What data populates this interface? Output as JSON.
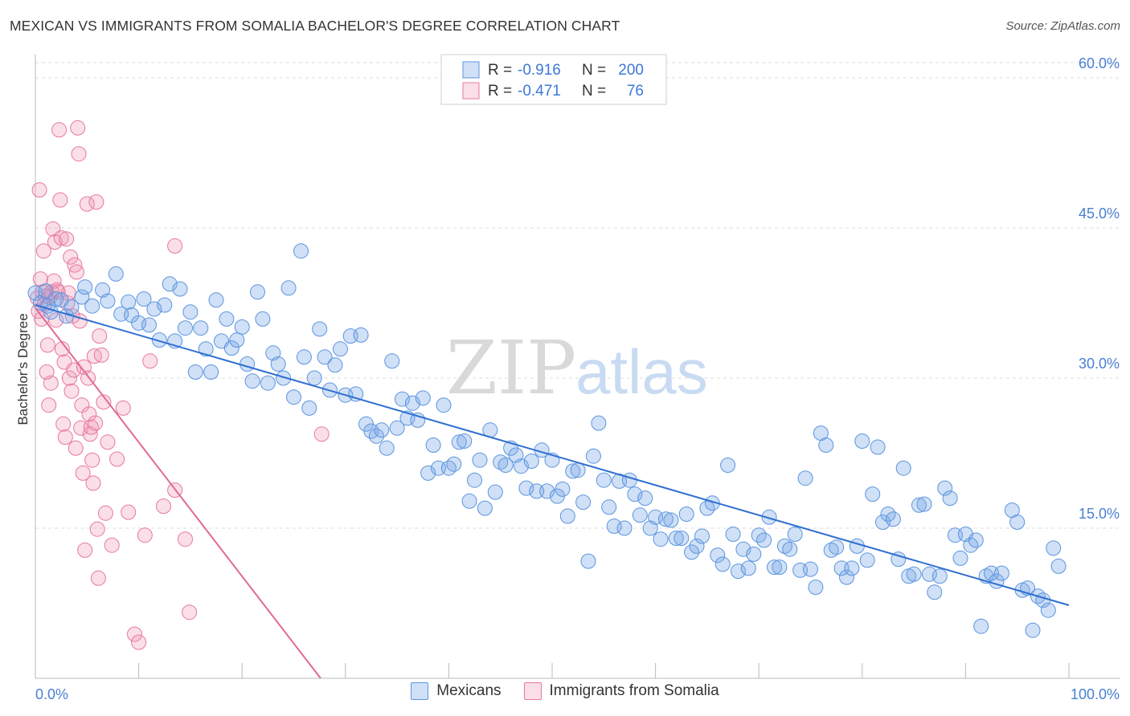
{
  "title": "MEXICAN VS IMMIGRANTS FROM SOMALIA BACHELOR'S DEGREE CORRELATION CHART",
  "source": "Source: ZipAtlas.com",
  "watermark": {
    "zip": "ZIP",
    "atlas": "atlas"
  },
  "colors": {
    "blue": "#5b95e0",
    "blue_fill": "rgba(120,165,230,0.35)",
    "blue_line": "#2f6fd0",
    "pink": "#e8779f",
    "pink_fill": "rgba(240,150,180,0.30)",
    "pink_line": "#e06a95",
    "tick_text": "#4a7fd4",
    "grid": "#dddddd"
  },
  "legend": {
    "rows": [
      {
        "r_label": "R =",
        "r_value": "-0.916",
        "n_label": "N =",
        "n_value": "200",
        "color": "blue"
      },
      {
        "r_label": "R =",
        "r_value": "-0.471",
        "n_label": "N =",
        "n_value": "76",
        "color": "pink"
      }
    ]
  },
  "bottom_legend": [
    "Mexicans",
    "Immigrants from Somalia"
  ],
  "chart_data": {
    "type": "scatter",
    "title": "MEXICAN VS IMMIGRANTS FROM SOMALIA BACHELOR'S DEGREE CORRELATION CHART",
    "xlabel": "",
    "ylabel": "Bachelor's Degree",
    "xlim": [
      0,
      100
    ],
    "ylim": [
      0,
      60
    ],
    "x_tick_labels": [
      "0.0%",
      "100.0%"
    ],
    "y_ticks": [
      15,
      30,
      45,
      60
    ],
    "y_tick_labels": [
      "15.0%",
      "30.0%",
      "45.0%",
      "60.0%"
    ],
    "grid": true,
    "series": [
      {
        "name": "Mexicans",
        "color": "blue",
        "trend": {
          "x": [
            0,
            100
          ],
          "y": [
            37.3,
            7.3
          ]
        },
        "points": [
          [
            0,
            38.5
          ],
          [
            0.5,
            37.5
          ],
          [
            1,
            38.7
          ],
          [
            1.2,
            37.2
          ],
          [
            1.5,
            36.6
          ],
          [
            2,
            37.9
          ],
          [
            2.5,
            37.8
          ],
          [
            3,
            36.2
          ],
          [
            3.5,
            37.1
          ],
          [
            4.5,
            38.1
          ],
          [
            4.8,
            39.1
          ],
          [
            5.5,
            37.2
          ],
          [
            6.5,
            38.8
          ],
          [
            7,
            37.7
          ],
          [
            7.8,
            40.4
          ],
          [
            8.3,
            36.4
          ],
          [
            9,
            37.6
          ],
          [
            9.3,
            36.3
          ],
          [
            10,
            35.5
          ],
          [
            10.5,
            37.9
          ],
          [
            11,
            35.3
          ],
          [
            11.5,
            36.9
          ],
          [
            12,
            33.8
          ],
          [
            12.5,
            37.3
          ],
          [
            13,
            39.4
          ],
          [
            13.5,
            33.7
          ],
          [
            14,
            38.9
          ],
          [
            14.5,
            35.0
          ],
          [
            15,
            36.6
          ],
          [
            15.5,
            30.6
          ],
          [
            16,
            35.0
          ],
          [
            16.5,
            32.9
          ],
          [
            17,
            30.6
          ],
          [
            17.5,
            37.8
          ],
          [
            18,
            33.7
          ],
          [
            18.5,
            35.9
          ],
          [
            19,
            33.0
          ],
          [
            19.5,
            33.8
          ],
          [
            20,
            35.1
          ],
          [
            20.5,
            31.4
          ],
          [
            21,
            29.7
          ],
          [
            21.5,
            38.6
          ],
          [
            22,
            35.9
          ],
          [
            22.5,
            29.5
          ],
          [
            23,
            32.5
          ],
          [
            23.5,
            31.4
          ],
          [
            24,
            30.0
          ],
          [
            24.5,
            39.0
          ],
          [
            25,
            28.1
          ],
          [
            25.7,
            42.7
          ],
          [
            26,
            32.1
          ],
          [
            26.5,
            27.0
          ],
          [
            27,
            30.0
          ],
          [
            27.5,
            34.9
          ],
          [
            28,
            32.1
          ],
          [
            28.5,
            28.8
          ],
          [
            29,
            31.3
          ],
          [
            29.5,
            32.9
          ],
          [
            30,
            28.3
          ],
          [
            30.5,
            34.2
          ],
          [
            31,
            28.4
          ],
          [
            31.5,
            34.3
          ],
          [
            32,
            25.4
          ],
          [
            32.5,
            24.7
          ],
          [
            33,
            24.2
          ],
          [
            33.5,
            24.8
          ],
          [
            34,
            23.0
          ],
          [
            34.5,
            31.7
          ],
          [
            35,
            25.0
          ],
          [
            35.5,
            27.9
          ],
          [
            36,
            26.0
          ],
          [
            36.5,
            27.5
          ],
          [
            37,
            25.8
          ],
          [
            37.5,
            28.0
          ],
          [
            38,
            20.5
          ],
          [
            38.5,
            23.3
          ],
          [
            39,
            21.0
          ],
          [
            39.5,
            27.3
          ],
          [
            40,
            21.0
          ],
          [
            40.5,
            21.4
          ],
          [
            41,
            23.6
          ],
          [
            41.5,
            23.7
          ],
          [
            42,
            17.7
          ],
          [
            42.5,
            19.8
          ],
          [
            43,
            21.8
          ],
          [
            43.5,
            17.0
          ],
          [
            44,
            24.8
          ],
          [
            44.5,
            18.6
          ],
          [
            45,
            21.6
          ],
          [
            45.5,
            21.3
          ],
          [
            46,
            23.0
          ],
          [
            46.5,
            22.3
          ],
          [
            47,
            21.2
          ],
          [
            47.5,
            19.0
          ],
          [
            48,
            21.7
          ],
          [
            48.5,
            18.7
          ],
          [
            49,
            22.8
          ],
          [
            49.5,
            18.7
          ],
          [
            50,
            21.8
          ],
          [
            50.5,
            18.2
          ],
          [
            51,
            18.9
          ],
          [
            51.5,
            16.2
          ],
          [
            52,
            20.7
          ],
          [
            52.5,
            20.8
          ],
          [
            53,
            17.6
          ],
          [
            53.5,
            11.7
          ],
          [
            54,
            22.2
          ],
          [
            54.5,
            25.5
          ],
          [
            55,
            19.8
          ],
          [
            55.5,
            17.1
          ],
          [
            56,
            15.2
          ],
          [
            56.5,
            19.7
          ],
          [
            57,
            15.0
          ],
          [
            57.5,
            19.8
          ],
          [
            58,
            18.4
          ],
          [
            58.5,
            16.3
          ],
          [
            59,
            18.0
          ],
          [
            59.5,
            15.0
          ],
          [
            60,
            16.1
          ],
          [
            60.5,
            13.9
          ],
          [
            61,
            15.9
          ],
          [
            61.5,
            15.8
          ],
          [
            62,
            14.0
          ],
          [
            62.5,
            14.0
          ],
          [
            63,
            16.4
          ],
          [
            63.5,
            12.6
          ],
          [
            64,
            13.2
          ],
          [
            64.5,
            14.2
          ],
          [
            65,
            17.0
          ],
          [
            65.5,
            17.5
          ],
          [
            66,
            12.3
          ],
          [
            66.5,
            11.4
          ],
          [
            67,
            21.3
          ],
          [
            67.5,
            14.4
          ],
          [
            68,
            10.7
          ],
          [
            68.5,
            12.9
          ],
          [
            69,
            11.0
          ],
          [
            69.5,
            12.4
          ],
          [
            70,
            14.3
          ],
          [
            70.5,
            13.8
          ],
          [
            71,
            16.1
          ],
          [
            71.5,
            11.1
          ],
          [
            72,
            11.1
          ],
          [
            72.5,
            13.2
          ],
          [
            73,
            12.9
          ],
          [
            73.5,
            14.4
          ],
          [
            74,
            10.8
          ],
          [
            74.5,
            20.0
          ],
          [
            75,
            10.9
          ],
          [
            75.5,
            9.1
          ],
          [
            76,
            24.5
          ],
          [
            76.5,
            23.3
          ],
          [
            77,
            12.8
          ],
          [
            77.5,
            13.1
          ],
          [
            78,
            11.0
          ],
          [
            78.5,
            10.1
          ],
          [
            79,
            11.0
          ],
          [
            79.5,
            13.2
          ],
          [
            80,
            23.7
          ],
          [
            80.5,
            11.8
          ],
          [
            81,
            18.4
          ],
          [
            81.5,
            23.1
          ],
          [
            82,
            15.6
          ],
          [
            82.5,
            16.4
          ],
          [
            83,
            15.9
          ],
          [
            83.5,
            11.9
          ],
          [
            84,
            21.0
          ],
          [
            84.5,
            10.2
          ],
          [
            85,
            10.4
          ],
          [
            85.5,
            17.3
          ],
          [
            86,
            17.4
          ],
          [
            86.5,
            10.4
          ],
          [
            87,
            8.6
          ],
          [
            87.5,
            10.2
          ],
          [
            88,
            19.0
          ],
          [
            88.5,
            18.0
          ],
          [
            89,
            14.3
          ],
          [
            89.5,
            12.0
          ],
          [
            90,
            14.4
          ],
          [
            90.5,
            13.3
          ],
          [
            91,
            13.8
          ],
          [
            91.5,
            5.2
          ],
          [
            92,
            10.2
          ],
          [
            92.5,
            10.5
          ],
          [
            93,
            9.7
          ],
          [
            93.5,
            10.5
          ],
          [
            94.5,
            16.8
          ],
          [
            95,
            15.6
          ],
          [
            95.5,
            8.8
          ],
          [
            96,
            9.0
          ],
          [
            96.5,
            4.8
          ],
          [
            97,
            8.2
          ],
          [
            97.5,
            7.8
          ],
          [
            98,
            6.8
          ],
          [
            98.5,
            13.0
          ],
          [
            99,
            11.2
          ]
        ]
      },
      {
        "name": "Immigrants from Somalia",
        "color": "pink",
        "trend": {
          "x": [
            0,
            27.6
          ],
          "y": [
            37.0,
            0
          ]
        },
        "points": [
          [
            0.2,
            38.0
          ],
          [
            0.3,
            36.7
          ],
          [
            0.4,
            48.8
          ],
          [
            0.5,
            39.9
          ],
          [
            0.6,
            35.9
          ],
          [
            0.7,
            38.6
          ],
          [
            0.8,
            42.7
          ],
          [
            0.9,
            37.4
          ],
          [
            1.0,
            38.2
          ],
          [
            1.1,
            30.6
          ],
          [
            1.2,
            33.3
          ],
          [
            1.3,
            27.3
          ],
          [
            1.4,
            38.1
          ],
          [
            1.5,
            29.5
          ],
          [
            1.6,
            38.6
          ],
          [
            1.7,
            44.9
          ],
          [
            1.8,
            39.7
          ],
          [
            1.9,
            43.6
          ],
          [
            2.0,
            35.8
          ],
          [
            2.1,
            38.8
          ],
          [
            2.2,
            38.6
          ],
          [
            2.3,
            54.8
          ],
          [
            2.4,
            47.8
          ],
          [
            2.5,
            44.0
          ],
          [
            2.6,
            32.9
          ],
          [
            2.7,
            25.4
          ],
          [
            2.8,
            31.6
          ],
          [
            2.9,
            24.1
          ],
          [
            3.0,
            43.9
          ],
          [
            3.1,
            37.5
          ],
          [
            3.2,
            38.5
          ],
          [
            3.3,
            30.0
          ],
          [
            3.4,
            42.1
          ],
          [
            3.5,
            28.7
          ],
          [
            3.6,
            36.2
          ],
          [
            3.7,
            30.8
          ],
          [
            3.8,
            41.3
          ],
          [
            3.9,
            23.0
          ],
          [
            4.0,
            40.6
          ],
          [
            4.1,
            55.0
          ],
          [
            4.2,
            52.4
          ],
          [
            4.3,
            35.7
          ],
          [
            4.4,
            25.0
          ],
          [
            4.5,
            27.3
          ],
          [
            4.6,
            20.5
          ],
          [
            4.7,
            31.1
          ],
          [
            4.8,
            12.8
          ],
          [
            5.0,
            47.4
          ],
          [
            5.1,
            30.0
          ],
          [
            5.2,
            26.4
          ],
          [
            5.3,
            24.4
          ],
          [
            5.4,
            25.1
          ],
          [
            5.5,
            21.8
          ],
          [
            5.6,
            19.5
          ],
          [
            5.7,
            32.2
          ],
          [
            5.8,
            25.5
          ],
          [
            5.9,
            47.6
          ],
          [
            6.0,
            14.9
          ],
          [
            6.1,
            10.0
          ],
          [
            6.2,
            34.2
          ],
          [
            6.4,
            32.3
          ],
          [
            6.6,
            27.6
          ],
          [
            6.8,
            16.5
          ],
          [
            7.0,
            23.6
          ],
          [
            7.4,
            13.3
          ],
          [
            7.9,
            21.9
          ],
          [
            8.5,
            27.0
          ],
          [
            9.0,
            16.6
          ],
          [
            9.6,
            4.4
          ],
          [
            10.0,
            3.6
          ],
          [
            10.6,
            14.3
          ],
          [
            11.1,
            31.7
          ],
          [
            12.4,
            17.2
          ],
          [
            13.5,
            18.8
          ],
          [
            13.5,
            43.2
          ],
          [
            14.5,
            13.9
          ],
          [
            14.9,
            6.6
          ],
          [
            27.7,
            24.4
          ]
        ]
      }
    ]
  }
}
